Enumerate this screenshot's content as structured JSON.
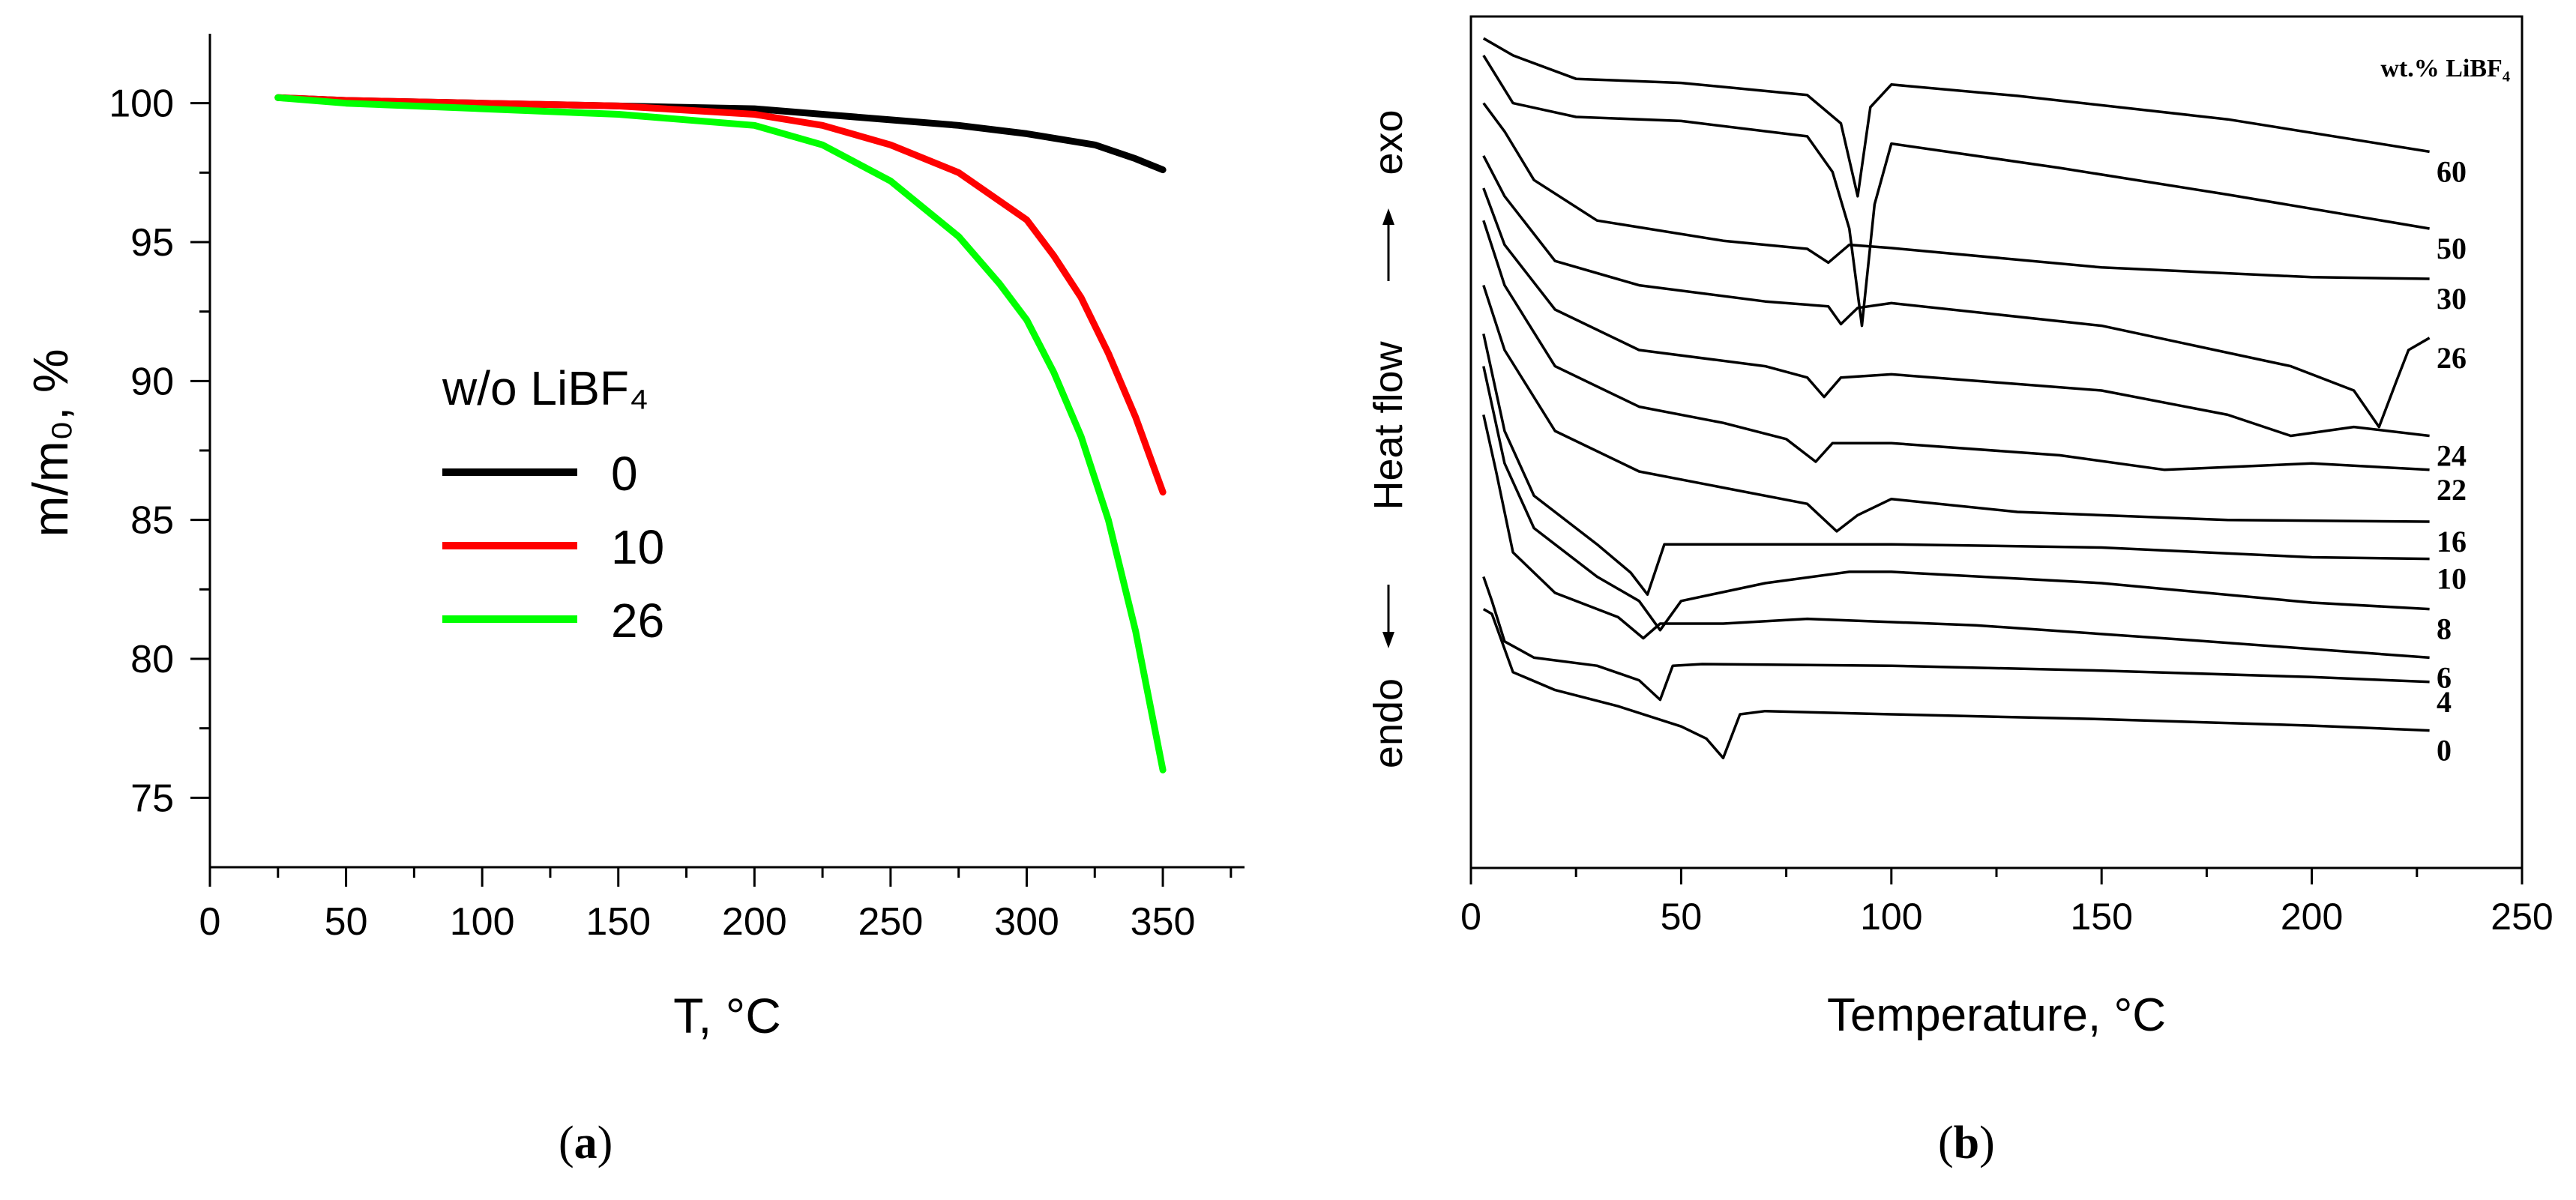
{
  "chart_data": [
    {
      "id": "a",
      "type": "line",
      "panel_label": "a",
      "xlabel": "T, °C",
      "ylabel": "m/m₀, %",
      "xlim": [
        0,
        380
      ],
      "ylim": [
        72.5,
        102.5
      ],
      "xticks": [
        0,
        50,
        100,
        150,
        200,
        250,
        300,
        350
      ],
      "yticks": [
        75,
        80,
        85,
        90,
        95,
        100
      ],
      "legend_title": "w/o LiBF₄",
      "legend_position": "center",
      "series": [
        {
          "name": "0",
          "color": "#000000",
          "x": [
            25,
            50,
            100,
            150,
            200,
            225,
            250,
            275,
            300,
            325,
            340,
            350
          ],
          "y": [
            100.2,
            100.1,
            100.0,
            99.9,
            99.8,
            99.6,
            99.4,
            99.2,
            98.9,
            98.5,
            98.0,
            97.6
          ]
        },
        {
          "name": "10",
          "color": "#ff0000",
          "x": [
            25,
            50,
            100,
            150,
            200,
            225,
            250,
            275,
            300,
            310,
            320,
            330,
            340,
            350
          ],
          "y": [
            100.2,
            100.1,
            100.0,
            99.9,
            99.6,
            99.2,
            98.5,
            97.5,
            95.8,
            94.5,
            93.0,
            91.0,
            88.7,
            86.0
          ]
        },
        {
          "name": "26",
          "color": "#00ff00",
          "x": [
            25,
            50,
            100,
            150,
            200,
            225,
            250,
            275,
            290,
            300,
            310,
            320,
            330,
            340,
            350
          ],
          "y": [
            100.2,
            100.0,
            99.8,
            99.6,
            99.2,
            98.5,
            97.2,
            95.2,
            93.5,
            92.2,
            90.3,
            88.0,
            85.0,
            81.0,
            76.0
          ]
        }
      ]
    },
    {
      "id": "b",
      "type": "line",
      "panel_label": "b",
      "xlabel": "Temperature, °C",
      "ylabel": "endo ←   Heat flow   → exo",
      "ylabel_endo": "endo",
      "ylabel_heatflow": "Heat flow",
      "ylabel_exo": "exo",
      "xlim": [
        0,
        250
      ],
      "xticks": [
        0,
        50,
        100,
        150,
        200,
        250
      ],
      "legend_title": "wt.% LiBF₄",
      "series": [
        {
          "name": "60",
          "points": [
            [
              3,
              1.5
            ],
            [
              10,
              3.6
            ],
            [
              25,
              6.5
            ],
            [
              50,
              7.0
            ],
            [
              80,
              8.5
            ],
            [
              88,
              12
            ],
            [
              92,
              21
            ],
            [
              95,
              10
            ],
            [
              100,
              7.2
            ],
            [
              130,
              8.6
            ],
            [
              180,
              11.5
            ],
            [
              228,
              15.5
            ]
          ]
        },
        {
          "name": "50",
          "points": [
            [
              3,
              3.6
            ],
            [
              10,
              9.5
            ],
            [
              25,
              11.2
            ],
            [
              50,
              11.7
            ],
            [
              80,
              13.6
            ],
            [
              86,
              18
            ],
            [
              90,
              25
            ],
            [
              93,
              37
            ],
            [
              96,
              22
            ],
            [
              100,
              14.5
            ],
            [
              140,
              17.5
            ],
            [
              180,
              20.8
            ],
            [
              228,
              25
            ]
          ]
        },
        {
          "name": "30",
          "points": [
            [
              3,
              9.5
            ],
            [
              8,
              13
            ],
            [
              15,
              19
            ],
            [
              30,
              24
            ],
            [
              60,
              26.5
            ],
            [
              80,
              27.5
            ],
            [
              85,
              29.2
            ],
            [
              90,
              27
            ],
            [
              100,
              27.4
            ],
            [
              150,
              29.8
            ],
            [
              200,
              31
            ],
            [
              228,
              31.2
            ]
          ]
        },
        {
          "name": "26",
          "points": [
            [
              3,
              16
            ],
            [
              8,
              21
            ],
            [
              20,
              29
            ],
            [
              40,
              32
            ],
            [
              70,
              34
            ],
            [
              85,
              34.6
            ],
            [
              88,
              36.8
            ],
            [
              92,
              34.8
            ],
            [
              100,
              34.2
            ],
            [
              150,
              37
            ],
            [
              195,
              42
            ],
            [
              210,
              45
            ],
            [
              216,
              49.5
            ],
            [
              220,
              44
            ],
            [
              223,
              40
            ],
            [
              228,
              38.5
            ]
          ]
        },
        {
          "name": "24",
          "points": [
            [
              3,
              20
            ],
            [
              8,
              27
            ],
            [
              20,
              35
            ],
            [
              40,
              40
            ],
            [
              70,
              42
            ],
            [
              80,
              43.4
            ],
            [
              84,
              45.8
            ],
            [
              88,
              43.4
            ],
            [
              100,
              43
            ],
            [
              150,
              45
            ],
            [
              180,
              48
            ],
            [
              195,
              50.6
            ],
            [
              210,
              49.5
            ],
            [
              228,
              50.6
            ]
          ]
        },
        {
          "name": "22",
          "points": [
            [
              3,
              24
            ],
            [
              8,
              32
            ],
            [
              20,
              42
            ],
            [
              40,
              47
            ],
            [
              60,
              49
            ],
            [
              75,
              51
            ],
            [
              82,
              53.8
            ],
            [
              86,
              51.5
            ],
            [
              100,
              51.5
            ],
            [
              140,
              53
            ],
            [
              165,
              54.8
            ],
            [
              200,
              54
            ],
            [
              228,
              54.8
            ]
          ]
        },
        {
          "name": "16",
          "points": [
            [
              3,
              32
            ],
            [
              8,
              40
            ],
            [
              20,
              50
            ],
            [
              40,
              55
            ],
            [
              60,
              57
            ],
            [
              80,
              59
            ],
            [
              87,
              62.4
            ],
            [
              92,
              60.4
            ],
            [
              100,
              58.4
            ],
            [
              130,
              60
            ],
            [
              180,
              61
            ],
            [
              228,
              61.2
            ]
          ]
        },
        {
          "name": "10",
          "points": [
            [
              3,
              38
            ],
            [
              8,
              50
            ],
            [
              15,
              58
            ],
            [
              30,
              64
            ],
            [
              38,
              67.5
            ],
            [
              42,
              70.2
            ],
            [
              46,
              64
            ],
            [
              55,
              64
            ],
            [
              100,
              64
            ],
            [
              150,
              64.4
            ],
            [
              200,
              65.6
            ],
            [
              228,
              65.8
            ]
          ]
        },
        {
          "name": "8",
          "points": [
            [
              3,
              42
            ],
            [
              8,
              54
            ],
            [
              15,
              62
            ],
            [
              30,
              68
            ],
            [
              40,
              71
            ],
            [
              45,
              74.6
            ],
            [
              50,
              71
            ],
            [
              70,
              68.8
            ],
            [
              90,
              67.4
            ],
            [
              100,
              67.4
            ],
            [
              150,
              68.8
            ],
            [
              200,
              71.2
            ],
            [
              228,
              72
            ]
          ]
        },
        {
          "name": "6",
          "points": [
            [
              3,
              48
            ],
            [
              6,
              55
            ],
            [
              10,
              65
            ],
            [
              20,
              70
            ],
            [
              35,
              73
            ],
            [
              41,
              75.6
            ],
            [
              45,
              73.8
            ],
            [
              60,
              73.8
            ],
            [
              80,
              73.2
            ],
            [
              120,
              74
            ],
            [
              170,
              75.8
            ],
            [
              228,
              78
            ]
          ]
        },
        {
          "name": "4",
          "points": [
            [
              3,
              68
            ],
            [
              5,
              71
            ],
            [
              8,
              76
            ],
            [
              15,
              78
            ],
            [
              30,
              79
            ],
            [
              40,
              80.8
            ],
            [
              45,
              83.2
            ],
            [
              48,
              79
            ],
            [
              55,
              78.8
            ],
            [
              100,
              79
            ],
            [
              150,
              79.6
            ],
            [
              200,
              80.4
            ],
            [
              228,
              81
            ]
          ]
        },
        {
          "name": "0",
          "points": [
            [
              3,
              72
            ],
            [
              5,
              72.6
            ],
            [
              10,
              79.8
            ],
            [
              20,
              82
            ],
            [
              35,
              84
            ],
            [
              50,
              86.5
            ],
            [
              56,
              88
            ],
            [
              60,
              90.4
            ],
            [
              64,
              85
            ],
            [
              70,
              84.6
            ],
            [
              100,
              85
            ],
            [
              150,
              85.6
            ],
            [
              200,
              86.4
            ],
            [
              228,
              87
            ]
          ]
        }
      ]
    }
  ]
}
